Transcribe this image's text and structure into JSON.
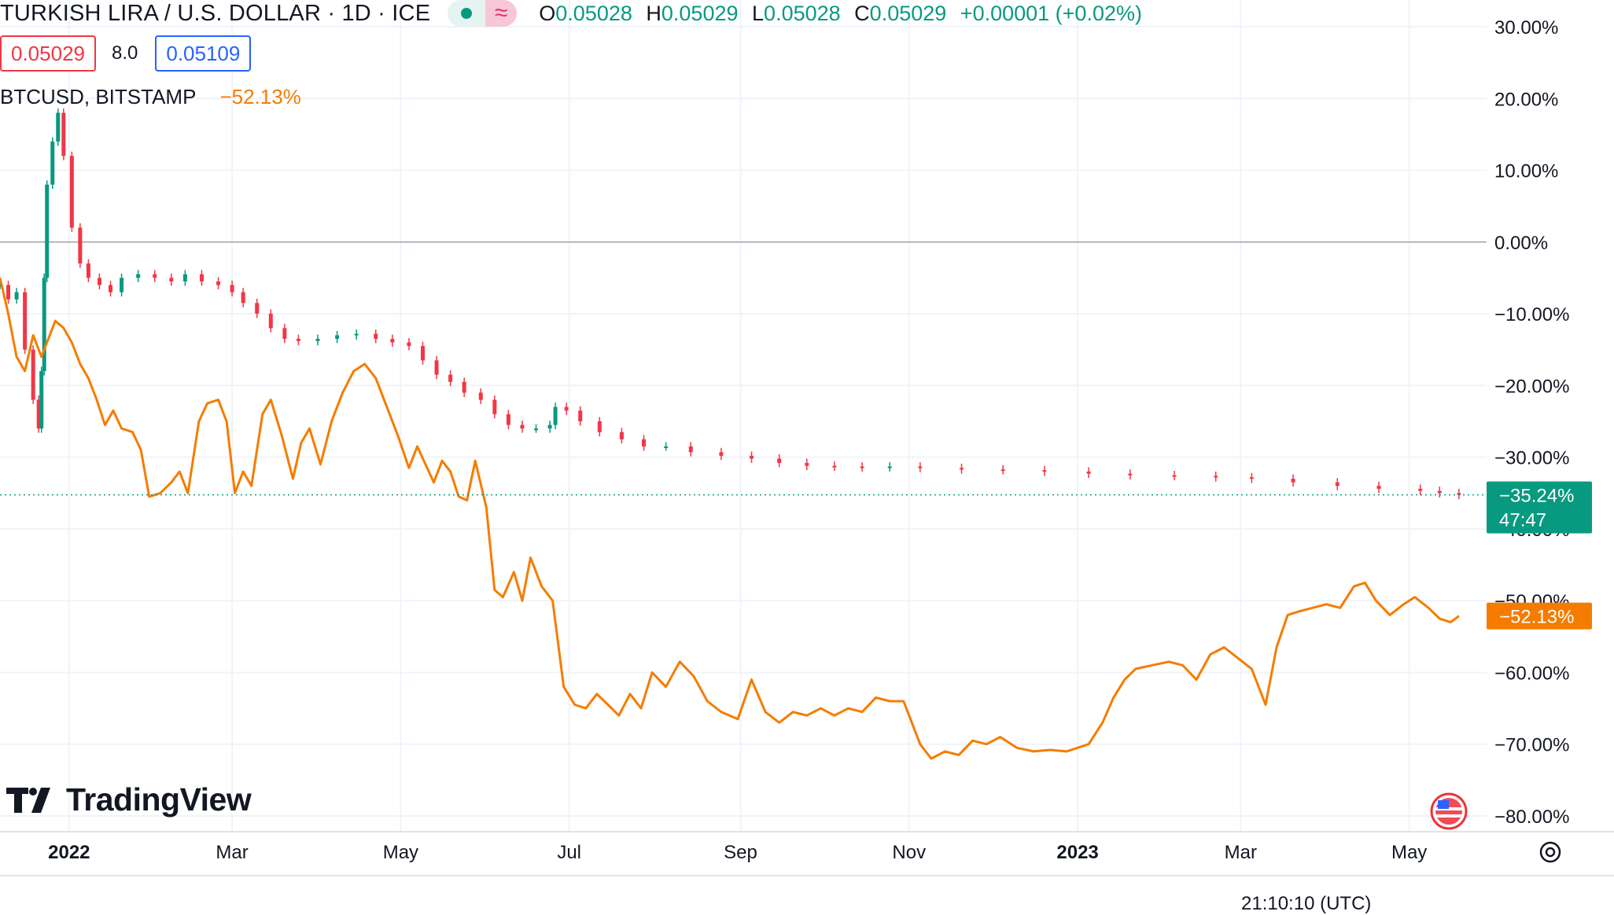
{
  "header": {
    "symbol": "TURKISH LIRA / U.S. DOLLAR · 1D · ICE",
    "ohlc": {
      "open_key": "O",
      "open": "0.05028",
      "high_key": "H",
      "high": "0.05029",
      "low_key": "L",
      "low": "0.05028",
      "close_key": "C",
      "close": "0.05029",
      "change": "+0.00001 (+0.02%)"
    }
  },
  "quote": {
    "bid": "0.05029",
    "spread": "8.0",
    "ask": "0.05109"
  },
  "compare": {
    "symbol": "BTCUSD, BITSTAMP",
    "change": "−52.13%"
  },
  "logo": {
    "text": "TradingView"
  },
  "time_label_partial": "21:10:10 (UTC)",
  "colors": {
    "up": "#089981",
    "down": "#f23645",
    "compare": "#f57c00",
    "grid": "#f0f3fa"
  },
  "chart_data": {
    "type": "line",
    "ylim": [
      -80,
      30
    ],
    "y_axis_ticks": [
      "30.00%",
      "20.00%",
      "10.00%",
      "0.00%",
      "−10.00%",
      "−20.00%",
      "−30.00%",
      "−40.00%",
      "−50.00%",
      "−60.00%",
      "−70.00%",
      "−80.00%"
    ],
    "y_tick_values": [
      30,
      20,
      10,
      0,
      -10,
      -20,
      -30,
      -40,
      -50,
      -60,
      -70,
      -80
    ],
    "x_axis_ticks": [
      {
        "label": "2022",
        "date": "2022-01-01",
        "bold": true
      },
      {
        "label": "Mar",
        "date": "2022-03-01",
        "bold": false
      },
      {
        "label": "May",
        "date": "2022-05-01",
        "bold": false
      },
      {
        "label": "Jul",
        "date": "2022-07-01",
        "bold": false
      },
      {
        "label": "Sep",
        "date": "2022-09-01",
        "bold": false
      },
      {
        "label": "Nov",
        "date": "2022-11-01",
        "bold": false
      },
      {
        "label": "2023",
        "date": "2023-01-01",
        "bold": true
      },
      {
        "label": "Mar",
        "date": "2023-03-01",
        "bold": false
      },
      {
        "label": "May",
        "date": "2023-05-01",
        "bold": false
      }
    ],
    "x_range": [
      "2021-12-07",
      "2023-05-29"
    ],
    "baseline": 0,
    "price_labels": [
      {
        "series": "TRY/USD",
        "value": -35.24,
        "text": "−35.24%",
        "subtext": "47:47"
      },
      {
        "series": "BTCUSD",
        "value": -52.13,
        "text": "−52.13%"
      }
    ],
    "series": [
      {
        "name": "TURKISH LIRA / U.S. DOLLAR",
        "style": "candles",
        "points": [
          [
            "2021-12-07",
            -6
          ],
          [
            "2021-12-10",
            -8
          ],
          [
            "2021-12-13",
            -7
          ],
          [
            "2021-12-16",
            -15
          ],
          [
            "2021-12-19",
            -22
          ],
          [
            "2021-12-21",
            -26
          ],
          [
            "2021-12-22",
            -18
          ],
          [
            "2021-12-23",
            -5
          ],
          [
            "2021-12-24",
            8
          ],
          [
            "2021-12-26",
            14
          ],
          [
            "2021-12-28",
            18
          ],
          [
            "2021-12-30",
            12
          ],
          [
            "2022-01-02",
            2
          ],
          [
            "2022-01-05",
            -3
          ],
          [
            "2022-01-08",
            -5
          ],
          [
            "2022-01-12",
            -6
          ],
          [
            "2022-01-16",
            -7
          ],
          [
            "2022-01-20",
            -5
          ],
          [
            "2022-01-26",
            -4.5
          ],
          [
            "2022-02-01",
            -5
          ],
          [
            "2022-02-07",
            -5.5
          ],
          [
            "2022-02-12",
            -4.5
          ],
          [
            "2022-02-18",
            -5.5
          ],
          [
            "2022-02-24",
            -6
          ],
          [
            "2022-03-01",
            -7
          ],
          [
            "2022-03-05",
            -8.5
          ],
          [
            "2022-03-10",
            -10
          ],
          [
            "2022-03-15",
            -12
          ],
          [
            "2022-03-20",
            -13.5
          ],
          [
            "2022-03-25",
            -13.8
          ],
          [
            "2022-04-01",
            -13.5
          ],
          [
            "2022-04-08",
            -13
          ],
          [
            "2022-04-15",
            -12.8
          ],
          [
            "2022-04-22",
            -13.5
          ],
          [
            "2022-04-28",
            -14
          ],
          [
            "2022-05-04",
            -14.5
          ],
          [
            "2022-05-09",
            -16.5
          ],
          [
            "2022-05-14",
            -18.5
          ],
          [
            "2022-05-19",
            -19.5
          ],
          [
            "2022-05-24",
            -21
          ],
          [
            "2022-05-30",
            -22
          ],
          [
            "2022-06-04",
            -24
          ],
          [
            "2022-06-09",
            -25.5
          ],
          [
            "2022-06-14",
            -26
          ],
          [
            "2022-06-19",
            -26
          ],
          [
            "2022-06-24",
            -25.5
          ],
          [
            "2022-06-26",
            -23
          ],
          [
            "2022-06-30",
            -23.5
          ],
          [
            "2022-07-05",
            -25
          ],
          [
            "2022-07-12",
            -26.5
          ],
          [
            "2022-07-20",
            -27.5
          ],
          [
            "2022-07-28",
            -28.5
          ],
          [
            "2022-08-05",
            -28.5
          ],
          [
            "2022-08-14",
            -29.3
          ],
          [
            "2022-08-25",
            -29.8
          ],
          [
            "2022-09-05",
            -30.2
          ],
          [
            "2022-09-15",
            -30.8
          ],
          [
            "2022-09-25",
            -31.2
          ],
          [
            "2022-10-05",
            -31.3
          ],
          [
            "2022-10-15",
            -31.4
          ],
          [
            "2022-10-25",
            -31.3
          ],
          [
            "2022-11-05",
            -31.5
          ],
          [
            "2022-11-20",
            -31.7
          ],
          [
            "2022-12-05",
            -31.8
          ],
          [
            "2022-12-20",
            -32
          ],
          [
            "2023-01-05",
            -32.3
          ],
          [
            "2023-01-20",
            -32.5
          ],
          [
            "2023-02-05",
            -32.6
          ],
          [
            "2023-02-20",
            -32.8
          ],
          [
            "2023-03-05",
            -33
          ],
          [
            "2023-03-20",
            -33.5
          ],
          [
            "2023-04-05",
            -34
          ],
          [
            "2023-04-20",
            -34.4
          ],
          [
            "2023-05-05",
            -34.7
          ],
          [
            "2023-05-12",
            -35
          ],
          [
            "2023-05-19",
            -35.24
          ]
        ]
      },
      {
        "name": "BTCUSD, BITSTAMP",
        "style": "line",
        "points": [
          [
            "2021-12-07",
            -5
          ],
          [
            "2021-12-10",
            -10
          ],
          [
            "2021-12-13",
            -16
          ],
          [
            "2021-12-16",
            -18
          ],
          [
            "2021-12-19",
            -13
          ],
          [
            "2021-12-22",
            -16
          ],
          [
            "2021-12-24",
            -14
          ],
          [
            "2021-12-27",
            -11
          ],
          [
            "2021-12-30",
            -12
          ],
          [
            "2022-01-02",
            -14
          ],
          [
            "2022-01-05",
            -17
          ],
          [
            "2022-01-08",
            -19
          ],
          [
            "2022-01-11",
            -22
          ],
          [
            "2022-01-14",
            -25.5
          ],
          [
            "2022-01-17",
            -23.5
          ],
          [
            "2022-01-20",
            -26
          ],
          [
            "2022-01-24",
            -26.5
          ],
          [
            "2022-01-27",
            -29
          ],
          [
            "2022-01-30",
            -35.5
          ],
          [
            "2022-02-03",
            -35
          ],
          [
            "2022-02-07",
            -33.5
          ],
          [
            "2022-02-10",
            -32
          ],
          [
            "2022-02-13",
            -35
          ],
          [
            "2022-02-17",
            -25
          ],
          [
            "2022-02-20",
            -22.5
          ],
          [
            "2022-02-24",
            -22
          ],
          [
            "2022-02-27",
            -25
          ],
          [
            "2022-03-02",
            -35
          ],
          [
            "2022-03-05",
            -32
          ],
          [
            "2022-03-08",
            -34
          ],
          [
            "2022-03-12",
            -24
          ],
          [
            "2022-03-15",
            -22
          ],
          [
            "2022-03-19",
            -27
          ],
          [
            "2022-03-23",
            -33
          ],
          [
            "2022-03-26",
            -28
          ],
          [
            "2022-03-29",
            -26
          ],
          [
            "2022-04-02",
            -31
          ],
          [
            "2022-04-06",
            -25
          ],
          [
            "2022-04-10",
            -21
          ],
          [
            "2022-04-14",
            -18
          ],
          [
            "2022-04-18",
            -17
          ],
          [
            "2022-04-22",
            -19
          ],
          [
            "2022-04-26",
            -23
          ],
          [
            "2022-04-30",
            -27
          ],
          [
            "2022-05-04",
            -31.5
          ],
          [
            "2022-05-07",
            -28.5
          ],
          [
            "2022-05-10",
            -31
          ],
          [
            "2022-05-13",
            -33.5
          ],
          [
            "2022-05-16",
            -30.5
          ],
          [
            "2022-05-19",
            -32
          ],
          [
            "2022-05-22",
            -35.5
          ],
          [
            "2022-05-25",
            -36
          ],
          [
            "2022-05-28",
            -30.5
          ],
          [
            "2022-06-01",
            -37
          ],
          [
            "2022-06-04",
            -48.5
          ],
          [
            "2022-06-07",
            -49.5
          ],
          [
            "2022-06-11",
            -46
          ],
          [
            "2022-06-14",
            -50
          ],
          [
            "2022-06-17",
            -44
          ],
          [
            "2022-06-21",
            -48
          ],
          [
            "2022-06-25",
            -50
          ],
          [
            "2022-06-29",
            -62
          ],
          [
            "2022-07-03",
            -64.5
          ],
          [
            "2022-07-07",
            -65
          ],
          [
            "2022-07-11",
            -63
          ],
          [
            "2022-07-15",
            -64.5
          ],
          [
            "2022-07-19",
            -66
          ],
          [
            "2022-07-23",
            -63
          ],
          [
            "2022-07-27",
            -65
          ],
          [
            "2022-07-31",
            -60
          ],
          [
            "2022-08-05",
            -62
          ],
          [
            "2022-08-10",
            -58.5
          ],
          [
            "2022-08-15",
            -60.5
          ],
          [
            "2022-08-20",
            -64
          ],
          [
            "2022-08-25",
            -65.5
          ],
          [
            "2022-08-31",
            -66.5
          ],
          [
            "2022-09-05",
            -61
          ],
          [
            "2022-09-10",
            -65.5
          ],
          [
            "2022-09-15",
            -67
          ],
          [
            "2022-09-20",
            -65.5
          ],
          [
            "2022-09-25",
            -66
          ],
          [
            "2022-09-30",
            -65
          ],
          [
            "2022-10-05",
            -66
          ],
          [
            "2022-10-10",
            -65
          ],
          [
            "2022-10-15",
            -65.5
          ],
          [
            "2022-10-20",
            -63.5
          ],
          [
            "2022-10-25",
            -64
          ],
          [
            "2022-10-30",
            -64
          ],
          [
            "2022-11-05",
            -70
          ],
          [
            "2022-11-09",
            -72
          ],
          [
            "2022-11-14",
            -71
          ],
          [
            "2022-11-19",
            -71.5
          ],
          [
            "2022-11-24",
            -69.5
          ],
          [
            "2022-11-29",
            -70
          ],
          [
            "2022-12-04",
            -69
          ],
          [
            "2022-12-10",
            -70.5
          ],
          [
            "2022-12-16",
            -71
          ],
          [
            "2022-12-22",
            -70.8
          ],
          [
            "2022-12-28",
            -71
          ],
          [
            "2023-01-05",
            -70
          ],
          [
            "2023-01-10",
            -67
          ],
          [
            "2023-01-14",
            -63.5
          ],
          [
            "2023-01-18",
            -61
          ],
          [
            "2023-01-22",
            -59.5
          ],
          [
            "2023-01-28",
            -59
          ],
          [
            "2023-02-03",
            -58.5
          ],
          [
            "2023-02-08",
            -59
          ],
          [
            "2023-02-13",
            -61
          ],
          [
            "2023-02-18",
            -57.5
          ],
          [
            "2023-02-23",
            -56.5
          ],
          [
            "2023-02-28",
            -58
          ],
          [
            "2023-03-05",
            -59.5
          ],
          [
            "2023-03-10",
            -64.5
          ],
          [
            "2023-03-14",
            -56.5
          ],
          [
            "2023-03-18",
            -52
          ],
          [
            "2023-03-22",
            -51.5
          ],
          [
            "2023-03-27",
            -51
          ],
          [
            "2023-04-01",
            -50.5
          ],
          [
            "2023-04-06",
            -51
          ],
          [
            "2023-04-11",
            -48
          ],
          [
            "2023-04-15",
            -47.5
          ],
          [
            "2023-04-19",
            -50
          ],
          [
            "2023-04-24",
            -52
          ],
          [
            "2023-04-29",
            -50.5
          ],
          [
            "2023-05-03",
            -49.5
          ],
          [
            "2023-05-08",
            -51
          ],
          [
            "2023-05-12",
            -52.5
          ],
          [
            "2023-05-16",
            -53
          ],
          [
            "2023-05-19",
            -52.13
          ]
        ]
      }
    ]
  }
}
